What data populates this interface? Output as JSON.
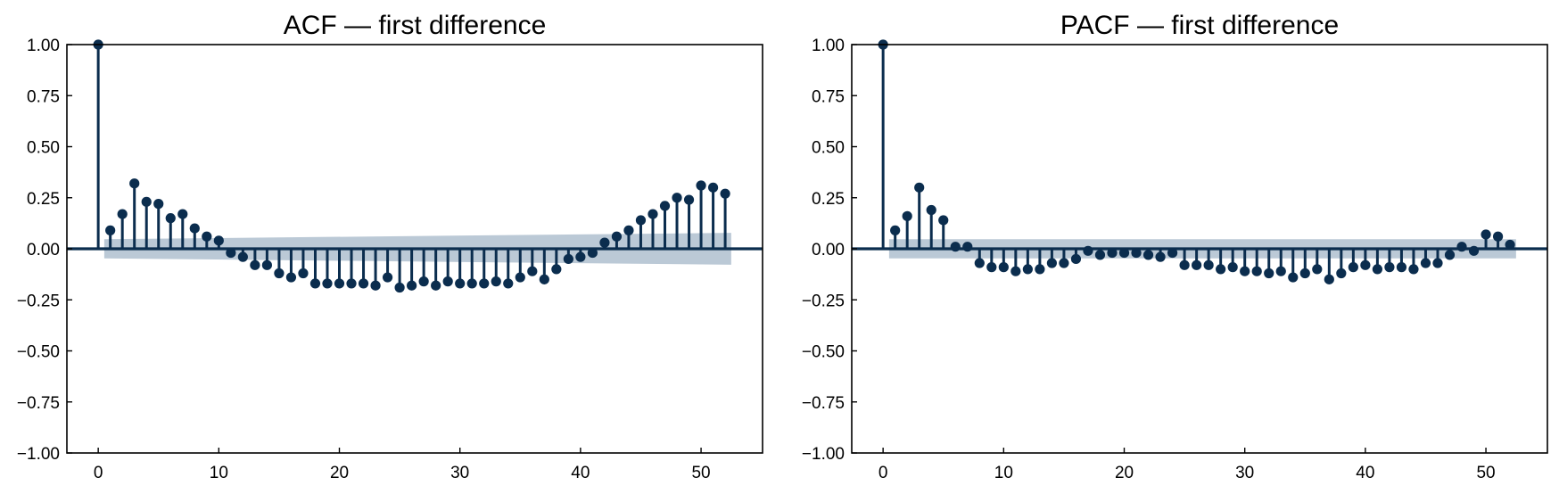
{
  "figure": {
    "stem_color": "#0b2d4e",
    "band_color": "#b4c3d2",
    "baseline_color": "#0b2d4e"
  },
  "chart_data": [
    {
      "type": "stem",
      "title": "ACF — first difference",
      "xlabel": "",
      "ylabel": "",
      "xlim": [
        -2.6,
        55.1
      ],
      "ylim": [
        -1.0,
        1.0
      ],
      "xticks": [
        0,
        10,
        20,
        30,
        40,
        50
      ],
      "xtick_labels": [
        "0",
        "10",
        "20",
        "30",
        "40",
        "50"
      ],
      "yticks": [
        1.0,
        0.75,
        0.5,
        0.25,
        0.0,
        -0.25,
        -0.5,
        -0.75,
        -1.0
      ],
      "ytick_labels": [
        "1.00",
        "0.75",
        "0.50",
        "0.25",
        "0.00",
        "−0.25",
        "−0.50",
        "−0.75",
        "−1.00"
      ],
      "grid": false,
      "lags": [
        0,
        1,
        2,
        3,
        4,
        5,
        6,
        7,
        8,
        9,
        10,
        11,
        12,
        13,
        14,
        15,
        16,
        17,
        18,
        19,
        20,
        21,
        22,
        23,
        24,
        25,
        26,
        27,
        28,
        29,
        30,
        31,
        32,
        33,
        34,
        35,
        36,
        37,
        38,
        39,
        40,
        41,
        42,
        43,
        44,
        45,
        46,
        47,
        48,
        49,
        50,
        51,
        52
      ],
      "values": [
        1.0,
        0.09,
        0.17,
        0.32,
        0.23,
        0.22,
        0.15,
        0.17,
        0.1,
        0.06,
        0.04,
        -0.02,
        -0.04,
        -0.08,
        -0.08,
        -0.12,
        -0.14,
        -0.12,
        -0.17,
        -0.17,
        -0.17,
        -0.17,
        -0.17,
        -0.18,
        -0.14,
        -0.19,
        -0.18,
        -0.16,
        -0.18,
        -0.16,
        -0.17,
        -0.17,
        -0.17,
        -0.16,
        -0.17,
        -0.14,
        -0.11,
        -0.15,
        -0.1,
        -0.05,
        -0.04,
        -0.02,
        0.03,
        0.06,
        0.09,
        0.14,
        0.17,
        0.21,
        0.25,
        0.24,
        0.31,
        0.3,
        0.27
      ],
      "confidence_band": {
        "lags": [
          0.5,
          52.5
        ],
        "upper": [
          0.047,
          0.078
        ],
        "lower": [
          -0.047,
          -0.078
        ]
      }
    },
    {
      "type": "stem",
      "title": "PACF — first difference",
      "xlabel": "",
      "ylabel": "",
      "xlim": [
        -2.6,
        55.1
      ],
      "ylim": [
        -1.0,
        1.0
      ],
      "xticks": [
        0,
        10,
        20,
        30,
        40,
        50
      ],
      "xtick_labels": [
        "0",
        "10",
        "20",
        "30",
        "40",
        "50"
      ],
      "yticks": [
        1.0,
        0.75,
        0.5,
        0.25,
        0.0,
        -0.25,
        -0.5,
        -0.75,
        -1.0
      ],
      "ytick_labels": [
        "1.00",
        "0.75",
        "0.50",
        "0.25",
        "0.00",
        "−0.25",
        "−0.50",
        "−0.75",
        "−1.00"
      ],
      "grid": false,
      "lags": [
        0,
        1,
        2,
        3,
        4,
        5,
        6,
        7,
        8,
        9,
        10,
        11,
        12,
        13,
        14,
        15,
        16,
        17,
        18,
        19,
        20,
        21,
        22,
        23,
        24,
        25,
        26,
        27,
        28,
        29,
        30,
        31,
        32,
        33,
        34,
        35,
        36,
        37,
        38,
        39,
        40,
        41,
        42,
        43,
        44,
        45,
        46,
        47,
        48,
        49,
        50,
        51,
        52
      ],
      "values": [
        1.0,
        0.09,
        0.16,
        0.3,
        0.19,
        0.14,
        0.01,
        0.01,
        -0.07,
        -0.09,
        -0.09,
        -0.11,
        -0.1,
        -0.1,
        -0.07,
        -0.07,
        -0.05,
        -0.01,
        -0.03,
        -0.02,
        -0.02,
        -0.02,
        -0.03,
        -0.04,
        -0.02,
        -0.08,
        -0.08,
        -0.08,
        -0.1,
        -0.09,
        -0.11,
        -0.11,
        -0.12,
        -0.11,
        -0.14,
        -0.12,
        -0.1,
        -0.15,
        -0.12,
        -0.09,
        -0.08,
        -0.1,
        -0.09,
        -0.09,
        -0.1,
        -0.07,
        -0.07,
        -0.03,
        0.01,
        -0.01,
        0.07,
        0.06,
        0.02
      ],
      "confidence_band": {
        "lags": [
          0.5,
          52.5
        ],
        "upper": [
          0.047,
          0.047
        ],
        "lower": [
          -0.047,
          -0.047
        ]
      }
    }
  ]
}
